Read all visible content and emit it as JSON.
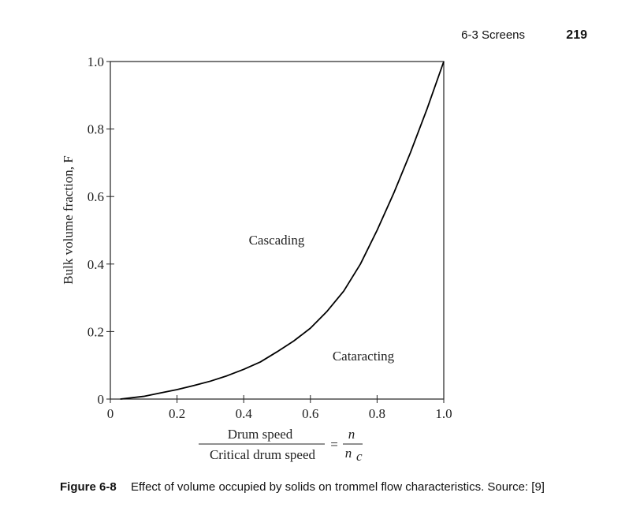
{
  "header": {
    "section": "6-3 Screens",
    "page_number": "219"
  },
  "chart_data": {
    "type": "line",
    "y_label": "Bulk volume fraction, F",
    "x_label": {
      "numerator": "Drum speed",
      "denominator": "Critical drum speed",
      "equals": "=",
      "ratio_numerator": "n",
      "ratio_denominator": "n",
      "ratio_denominator_subscript": "c"
    },
    "x": [
      0.03,
      0.1,
      0.15,
      0.2,
      0.25,
      0.3,
      0.35,
      0.4,
      0.45,
      0.5,
      0.55,
      0.6,
      0.65,
      0.7,
      0.75,
      0.8,
      0.85,
      0.9,
      0.95,
      1.0
    ],
    "values": [
      0,
      0.008,
      0.018,
      0.028,
      0.04,
      0.053,
      0.069,
      0.088,
      0.11,
      0.14,
      0.172,
      0.21,
      0.26,
      0.32,
      0.4,
      0.5,
      0.61,
      0.73,
      0.86,
      1.0
    ],
    "color": "#000000",
    "xlim": [
      0,
      1
    ],
    "ylim": [
      0,
      1
    ],
    "xticks": [
      0,
      0.2,
      0.4,
      0.6,
      0.8,
      {
        "value": 1,
        "label": "1.0"
      }
    ],
    "yticks": [
      0,
      0.2,
      0.4,
      0.6,
      0.8,
      {
        "value": 1,
        "label": "1.0"
      }
    ],
    "annotations": [
      "Cascading",
      "Cataracting"
    ]
  },
  "caption": {
    "label": "Figure 6-8",
    "text": "Effect of volume occupied by solids on trommel flow characteristics. Source: [9]"
  }
}
